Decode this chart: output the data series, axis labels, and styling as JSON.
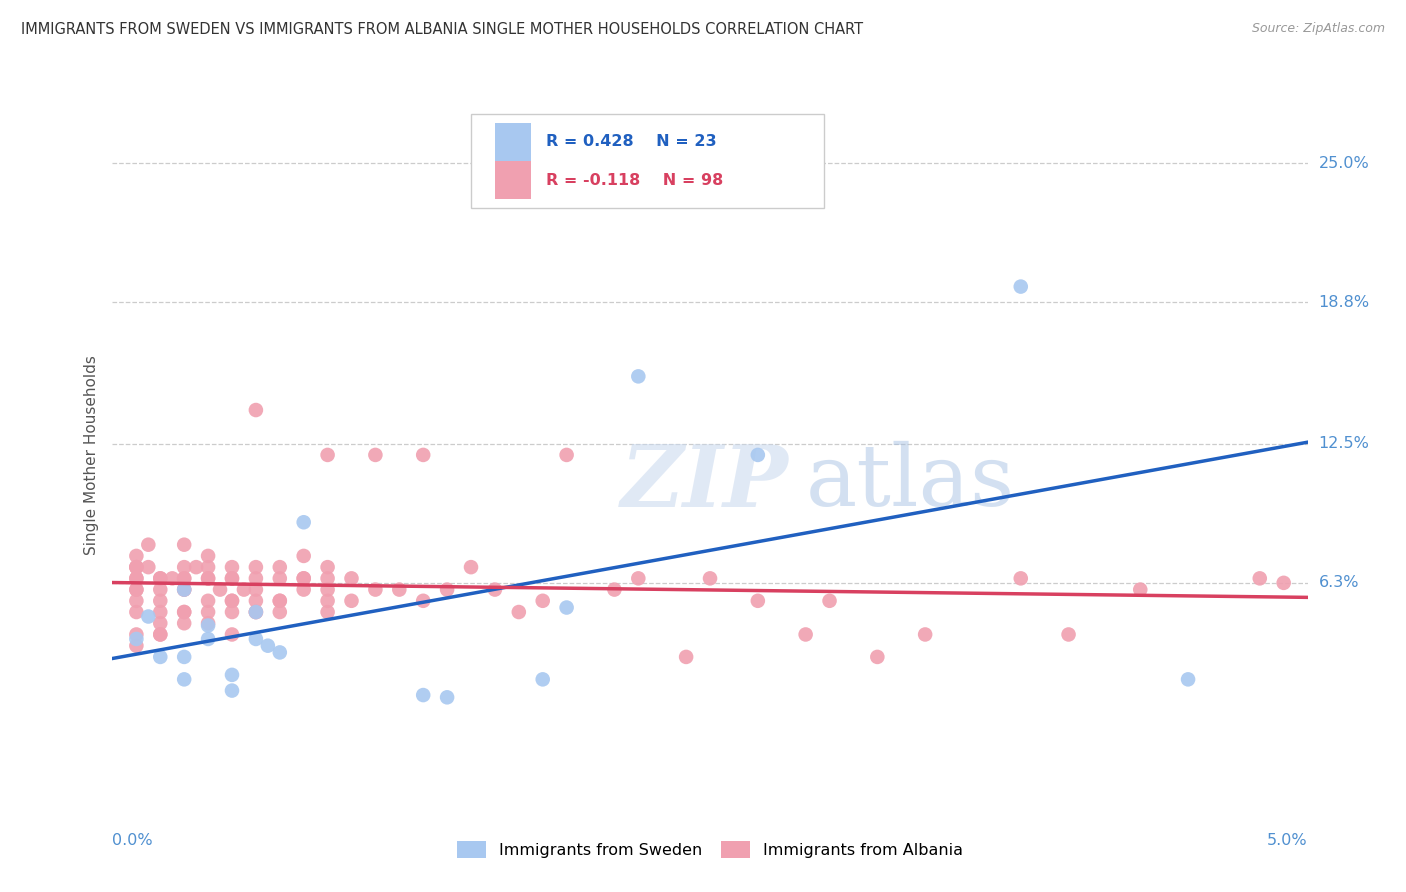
{
  "title": "IMMIGRANTS FROM SWEDEN VS IMMIGRANTS FROM ALBANIA SINGLE MOTHER HOUSEHOLDS CORRELATION CHART",
  "source": "Source: ZipAtlas.com",
  "ylabel": "Single Mother Households",
  "ytick_labels": [
    "6.3%",
    "12.5%",
    "18.8%",
    "25.0%"
  ],
  "ytick_values": [
    0.063,
    0.125,
    0.188,
    0.25
  ],
  "xlim": [
    0.0,
    0.05
  ],
  "ylim": [
    -0.035,
    0.275
  ],
  "sweden_R": 0.428,
  "sweden_N": 23,
  "albania_R": -0.118,
  "albania_N": 98,
  "sweden_color": "#a8c8f0",
  "albania_color": "#f0a0b0",
  "sweden_line_color": "#2060c0",
  "albania_line_color": "#d84060",
  "legend_label_sweden": "Immigrants from Sweden",
  "legend_label_albania": "Immigrants from Albania",
  "background_color": "#ffffff",
  "grid_color": "#cccccc",
  "title_color": "#333333",
  "axis_label_color": "#5090d0",
  "watermark_zip": "ZIP",
  "watermark_atlas": "atlas",
  "sweden_x": [
    0.001,
    0.0015,
    0.002,
    0.003,
    0.003,
    0.003,
    0.004,
    0.004,
    0.005,
    0.005,
    0.006,
    0.006,
    0.0065,
    0.007,
    0.008,
    0.013,
    0.014,
    0.018,
    0.019,
    0.022,
    0.027,
    0.038,
    0.045
  ],
  "sweden_y": [
    0.038,
    0.048,
    0.03,
    0.02,
    0.03,
    0.06,
    0.038,
    0.044,
    0.015,
    0.022,
    0.038,
    0.05,
    0.035,
    0.032,
    0.09,
    0.013,
    0.012,
    0.02,
    0.052,
    0.155,
    0.12,
    0.195,
    0.02
  ],
  "albania_x": [
    0.001,
    0.001,
    0.001,
    0.001,
    0.001,
    0.001,
    0.001,
    0.001,
    0.001,
    0.001,
    0.001,
    0.001,
    0.0015,
    0.0015,
    0.002,
    0.002,
    0.002,
    0.002,
    0.002,
    0.002,
    0.002,
    0.002,
    0.0025,
    0.003,
    0.003,
    0.003,
    0.003,
    0.003,
    0.003,
    0.003,
    0.003,
    0.003,
    0.0035,
    0.004,
    0.004,
    0.004,
    0.004,
    0.004,
    0.004,
    0.004,
    0.0045,
    0.005,
    0.005,
    0.005,
    0.005,
    0.005,
    0.005,
    0.005,
    0.0055,
    0.006,
    0.006,
    0.006,
    0.006,
    0.006,
    0.006,
    0.006,
    0.007,
    0.007,
    0.007,
    0.007,
    0.007,
    0.008,
    0.008,
    0.008,
    0.008,
    0.009,
    0.009,
    0.009,
    0.009,
    0.009,
    0.009,
    0.01,
    0.01,
    0.011,
    0.011,
    0.012,
    0.013,
    0.013,
    0.014,
    0.015,
    0.016,
    0.017,
    0.018,
    0.019,
    0.021,
    0.022,
    0.024,
    0.025,
    0.027,
    0.029,
    0.03,
    0.032,
    0.034,
    0.038,
    0.04,
    0.043,
    0.048,
    0.049
  ],
  "albania_y": [
    0.06,
    0.06,
    0.065,
    0.07,
    0.07,
    0.07,
    0.075,
    0.05,
    0.04,
    0.035,
    0.055,
    0.065,
    0.08,
    0.07,
    0.065,
    0.06,
    0.055,
    0.05,
    0.045,
    0.04,
    0.065,
    0.04,
    0.065,
    0.065,
    0.06,
    0.05,
    0.06,
    0.065,
    0.07,
    0.08,
    0.05,
    0.045,
    0.07,
    0.065,
    0.055,
    0.05,
    0.065,
    0.07,
    0.075,
    0.045,
    0.06,
    0.055,
    0.05,
    0.065,
    0.07,
    0.065,
    0.055,
    0.04,
    0.06,
    0.065,
    0.05,
    0.07,
    0.055,
    0.06,
    0.14,
    0.05,
    0.055,
    0.065,
    0.055,
    0.07,
    0.05,
    0.065,
    0.075,
    0.06,
    0.065,
    0.05,
    0.12,
    0.065,
    0.055,
    0.07,
    0.06,
    0.065,
    0.055,
    0.12,
    0.06,
    0.06,
    0.055,
    0.12,
    0.06,
    0.07,
    0.06,
    0.05,
    0.055,
    0.12,
    0.06,
    0.065,
    0.03,
    0.065,
    0.055,
    0.04,
    0.055,
    0.03,
    0.04,
    0.065,
    0.04,
    0.06,
    0.065,
    0.063
  ]
}
